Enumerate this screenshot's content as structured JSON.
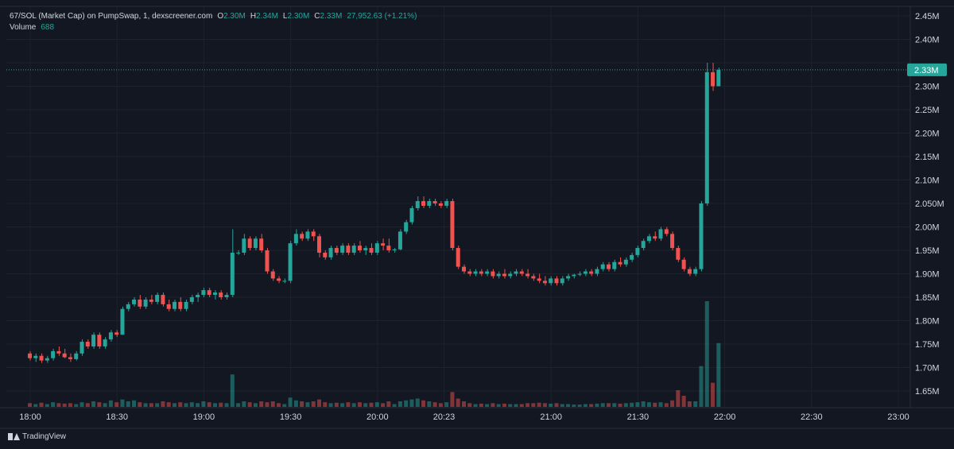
{
  "legend": {
    "title": "67/SOL (Market Cap) on PumpSwap, 1, dexscreener.com",
    "o_label": "O",
    "o_value": "2.30M",
    "h_label": "H",
    "h_value": "2.34M",
    "l_label": "L",
    "l_value": "2.30M",
    "c_label": "C",
    "c_value": "2.33M",
    "change": "27,952.63 (+1.21%)",
    "volume_label": "Volume",
    "volume_value": "688"
  },
  "brand": {
    "name": "TradingView",
    "icon": "tradingview-logo-icon"
  },
  "colors": {
    "background": "#131722",
    "up": "#26a69a",
    "down": "#ef5350",
    "grid": "#1e222d",
    "text": "#d1d4dc"
  },
  "chart_data": {
    "type": "candlestick",
    "x_tick_labels": [
      "18:00",
      "18:30",
      "19:00",
      "19:30",
      "20:00",
      "20:23",
      "21:00",
      "21:30",
      "22:00",
      "22:30",
      "23:00"
    ],
    "x_tick_minutes": [
      0,
      30,
      60,
      90,
      120,
      143,
      180,
      210,
      240,
      270,
      300
    ],
    "y_tick_labels": [
      "2.45M",
      "2.40M",
      "2.35M",
      "2.30M",
      "2.25M",
      "2.20M",
      "2.15M",
      "2.10M",
      "2.050M",
      "2.00M",
      "1.95M",
      "1.90M",
      "1.85M",
      "1.80M",
      "1.75M",
      "1.70M",
      "1.65M"
    ],
    "y_tick_values": [
      2.45,
      2.4,
      2.35,
      2.3,
      2.25,
      2.2,
      2.15,
      2.1,
      2.05,
      2.0,
      1.95,
      1.9,
      1.85,
      1.8,
      1.75,
      1.7,
      1.65
    ],
    "ylim": [
      1.62,
      2.47
    ],
    "xlim": [
      0,
      300
    ],
    "unit": "M",
    "last_price": 2.335,
    "last_price_label": "2.33M",
    "candles": [
      [
        0,
        1.73,
        1.735,
        1.715,
        1.72,
        40
      ],
      [
        2,
        1.72,
        1.73,
        1.712,
        1.725,
        30
      ],
      [
        4,
        1.725,
        1.73,
        1.71,
        1.715,
        45
      ],
      [
        6,
        1.715,
        1.725,
        1.71,
        1.72,
        30
      ],
      [
        8,
        1.72,
        1.74,
        1.715,
        1.735,
        50
      ],
      [
        10,
        1.735,
        1.745,
        1.725,
        1.73,
        40
      ],
      [
        12,
        1.73,
        1.74,
        1.72,
        1.722,
        35
      ],
      [
        14,
        1.722,
        1.73,
        1.712,
        1.718,
        40
      ],
      [
        16,
        1.718,
        1.735,
        1.715,
        1.73,
        30
      ],
      [
        18,
        1.73,
        1.76,
        1.725,
        1.755,
        50
      ],
      [
        20,
        1.755,
        1.76,
        1.74,
        1.745,
        40
      ],
      [
        22,
        1.745,
        1.775,
        1.74,
        1.77,
        60
      ],
      [
        24,
        1.77,
        1.775,
        1.74,
        1.745,
        50
      ],
      [
        26,
        1.745,
        1.765,
        1.74,
        1.76,
        40
      ],
      [
        28,
        1.76,
        1.78,
        1.755,
        1.775,
        70
      ],
      [
        30,
        1.775,
        1.78,
        1.765,
        1.77,
        50
      ],
      [
        32,
        1.77,
        1.83,
        1.77,
        1.825,
        80
      ],
      [
        34,
        1.825,
        1.84,
        1.82,
        1.835,
        60
      ],
      [
        36,
        1.835,
        1.85,
        1.83,
        1.845,
        70
      ],
      [
        38,
        1.845,
        1.855,
        1.825,
        1.83,
        50
      ],
      [
        40,
        1.83,
        1.85,
        1.825,
        1.845,
        40
      ],
      [
        42,
        1.845,
        1.855,
        1.835,
        1.84,
        40
      ],
      [
        44,
        1.84,
        1.86,
        1.835,
        1.855,
        40
      ],
      [
        46,
        1.855,
        1.86,
        1.83,
        1.835,
        60
      ],
      [
        48,
        1.835,
        1.845,
        1.82,
        1.825,
        50
      ],
      [
        50,
        1.825,
        1.845,
        1.82,
        1.84,
        40
      ],
      [
        52,
        1.84,
        1.85,
        1.82,
        1.825,
        50
      ],
      [
        54,
        1.825,
        1.845,
        1.82,
        1.84,
        40
      ],
      [
        56,
        1.84,
        1.855,
        1.835,
        1.85,
        50
      ],
      [
        58,
        1.85,
        1.86,
        1.84,
        1.855,
        40
      ],
      [
        60,
        1.855,
        1.87,
        1.85,
        1.865,
        60
      ],
      [
        62,
        1.865,
        1.87,
        1.85,
        1.855,
        50
      ],
      [
        64,
        1.855,
        1.865,
        1.845,
        1.86,
        40
      ],
      [
        66,
        1.86,
        1.865,
        1.845,
        1.85,
        45
      ],
      [
        68,
        1.85,
        1.86,
        1.845,
        1.855,
        40
      ],
      [
        70,
        1.855,
        1.995,
        1.85,
        1.945,
        350
      ],
      [
        72,
        1.945,
        1.95,
        1.94,
        1.945,
        40
      ],
      [
        74,
        1.945,
        1.985,
        1.94,
        1.975,
        60
      ],
      [
        76,
        1.975,
        1.98,
        1.95,
        1.955,
        50
      ],
      [
        78,
        1.955,
        1.98,
        1.95,
        1.975,
        40
      ],
      [
        80,
        1.975,
        1.985,
        1.945,
        1.95,
        60
      ],
      [
        82,
        1.95,
        1.955,
        1.9,
        1.905,
        50
      ],
      [
        84,
        1.905,
        1.91,
        1.885,
        1.89,
        60
      ],
      [
        86,
        1.89,
        1.895,
        1.88,
        1.885,
        40
      ],
      [
        88,
        1.885,
        1.89,
        1.88,
        1.885,
        30
      ],
      [
        90,
        1.885,
        1.97,
        1.88,
        1.965,
        100
      ],
      [
        92,
        1.965,
        1.995,
        1.96,
        1.985,
        70
      ],
      [
        94,
        1.985,
        1.99,
        1.97,
        1.975,
        60
      ],
      [
        96,
        1.975,
        1.995,
        1.97,
        1.99,
        50
      ],
      [
        98,
        1.99,
        1.995,
        1.97,
        1.98,
        60
      ],
      [
        100,
        1.98,
        1.985,
        1.935,
        1.945,
        80
      ],
      [
        102,
        1.945,
        1.95,
        1.93,
        1.935,
        50
      ],
      [
        104,
        1.935,
        1.96,
        1.93,
        1.955,
        40
      ],
      [
        106,
        1.955,
        1.96,
        1.94,
        1.945,
        45
      ],
      [
        108,
        1.945,
        1.965,
        1.94,
        1.96,
        40
      ],
      [
        110,
        1.96,
        1.965,
        1.94,
        1.945,
        50
      ],
      [
        112,
        1.945,
        1.965,
        1.94,
        1.96,
        40
      ],
      [
        114,
        1.96,
        1.97,
        1.945,
        1.95,
        50
      ],
      [
        116,
        1.95,
        1.96,
        1.94,
        1.955,
        40
      ],
      [
        118,
        1.955,
        1.965,
        1.94,
        1.945,
        45
      ],
      [
        120,
        1.945,
        1.97,
        1.94,
        1.965,
        50
      ],
      [
        122,
        1.965,
        1.975,
        1.95,
        1.96,
        40
      ],
      [
        124,
        1.96,
        1.975,
        1.945,
        1.95,
        60
      ],
      [
        126,
        1.95,
        1.955,
        1.945,
        1.952,
        30
      ],
      [
        128,
        1.952,
        1.995,
        1.95,
        1.99,
        60
      ],
      [
        130,
        1.99,
        2.015,
        1.985,
        2.01,
        70
      ],
      [
        132,
        2.01,
        2.045,
        2.005,
        2.04,
        80
      ],
      [
        134,
        2.04,
        2.065,
        2.035,
        2.055,
        90
      ],
      [
        136,
        2.055,
        2.065,
        2.04,
        2.045,
        70
      ],
      [
        138,
        2.045,
        2.06,
        2.04,
        2.055,
        60
      ],
      [
        140,
        2.055,
        2.06,
        2.045,
        2.05,
        50
      ],
      [
        142,
        2.05,
        2.055,
        2.04,
        2.045,
        40
      ],
      [
        144,
        2.045,
        2.06,
        2.04,
        2.055,
        50
      ],
      [
        146,
        2.055,
        2.06,
        1.95,
        1.955,
        160
      ],
      [
        148,
        1.955,
        1.96,
        1.91,
        1.915,
        90
      ],
      [
        150,
        1.915,
        1.92,
        1.9,
        1.905,
        60
      ],
      [
        152,
        1.905,
        1.91,
        1.895,
        1.9,
        40
      ],
      [
        154,
        1.9,
        1.91,
        1.895,
        1.905,
        30
      ],
      [
        156,
        1.905,
        1.91,
        1.895,
        1.9,
        35
      ],
      [
        158,
        1.9,
        1.91,
        1.895,
        1.905,
        30
      ],
      [
        160,
        1.905,
        1.91,
        1.89,
        1.895,
        40
      ],
      [
        162,
        1.895,
        1.905,
        1.89,
        1.9,
        30
      ],
      [
        164,
        1.9,
        1.91,
        1.89,
        1.895,
        35
      ],
      [
        166,
        1.895,
        1.905,
        1.89,
        1.9,
        30
      ],
      [
        168,
        1.9,
        1.91,
        1.895,
        1.905,
        30
      ],
      [
        170,
        1.905,
        1.91,
        1.895,
        1.9,
        30
      ],
      [
        172,
        1.9,
        1.91,
        1.89,
        1.895,
        40
      ],
      [
        174,
        1.895,
        1.9,
        1.885,
        1.89,
        40
      ],
      [
        176,
        1.89,
        1.9,
        1.88,
        1.885,
        45
      ],
      [
        178,
        1.885,
        1.895,
        1.875,
        1.88,
        40
      ],
      [
        180,
        1.88,
        1.895,
        1.875,
        1.89,
        35
      ],
      [
        182,
        1.89,
        1.895,
        1.875,
        1.88,
        40
      ],
      [
        184,
        1.88,
        1.895,
        1.875,
        1.89,
        30
      ],
      [
        186,
        1.89,
        1.9,
        1.885,
        1.895,
        30
      ],
      [
        188,
        1.895,
        1.9,
        1.89,
        1.898,
        25
      ],
      [
        190,
        1.898,
        1.905,
        1.895,
        1.9,
        25
      ],
      [
        192,
        1.9,
        1.91,
        1.895,
        1.905,
        30
      ],
      [
        194,
        1.905,
        1.91,
        1.895,
        1.9,
        30
      ],
      [
        196,
        1.9,
        1.915,
        1.895,
        1.91,
        35
      ],
      [
        198,
        1.91,
        1.925,
        1.905,
        1.92,
        40
      ],
      [
        200,
        1.92,
        1.925,
        1.905,
        1.91,
        40
      ],
      [
        202,
        1.91,
        1.93,
        1.905,
        1.925,
        40
      ],
      [
        204,
        1.925,
        1.935,
        1.915,
        1.92,
        35
      ],
      [
        206,
        1.92,
        1.935,
        1.915,
        1.93,
        40
      ],
      [
        208,
        1.93,
        1.945,
        1.925,
        1.94,
        45
      ],
      [
        210,
        1.94,
        1.96,
        1.935,
        1.955,
        50
      ],
      [
        212,
        1.955,
        1.975,
        1.95,
        1.97,
        60
      ],
      [
        214,
        1.97,
        1.985,
        1.965,
        1.98,
        50
      ],
      [
        216,
        1.98,
        1.99,
        1.97,
        1.975,
        45
      ],
      [
        218,
        1.975,
        2.0,
        1.97,
        1.995,
        50
      ],
      [
        220,
        1.995,
        2.0,
        1.98,
        1.985,
        40
      ],
      [
        222,
        1.985,
        1.99,
        1.95,
        1.955,
        70
      ],
      [
        224,
        1.955,
        1.96,
        1.925,
        1.93,
        180
      ],
      [
        226,
        1.93,
        1.935,
        1.905,
        1.91,
        120
      ],
      [
        228,
        1.91,
        1.915,
        1.895,
        1.9,
        60
      ],
      [
        230,
        1.9,
        1.915,
        1.895,
        1.91,
        60
      ],
      [
        232,
        1.91,
        2.055,
        1.905,
        2.05,
        440
      ],
      [
        234,
        2.05,
        2.35,
        2.045,
        2.33,
        1140
      ],
      [
        236,
        2.33,
        2.35,
        2.29,
        2.3,
        260
      ],
      [
        238,
        2.3,
        2.34,
        2.3,
        2.335,
        688
      ]
    ],
    "volume_max": 1200
  }
}
